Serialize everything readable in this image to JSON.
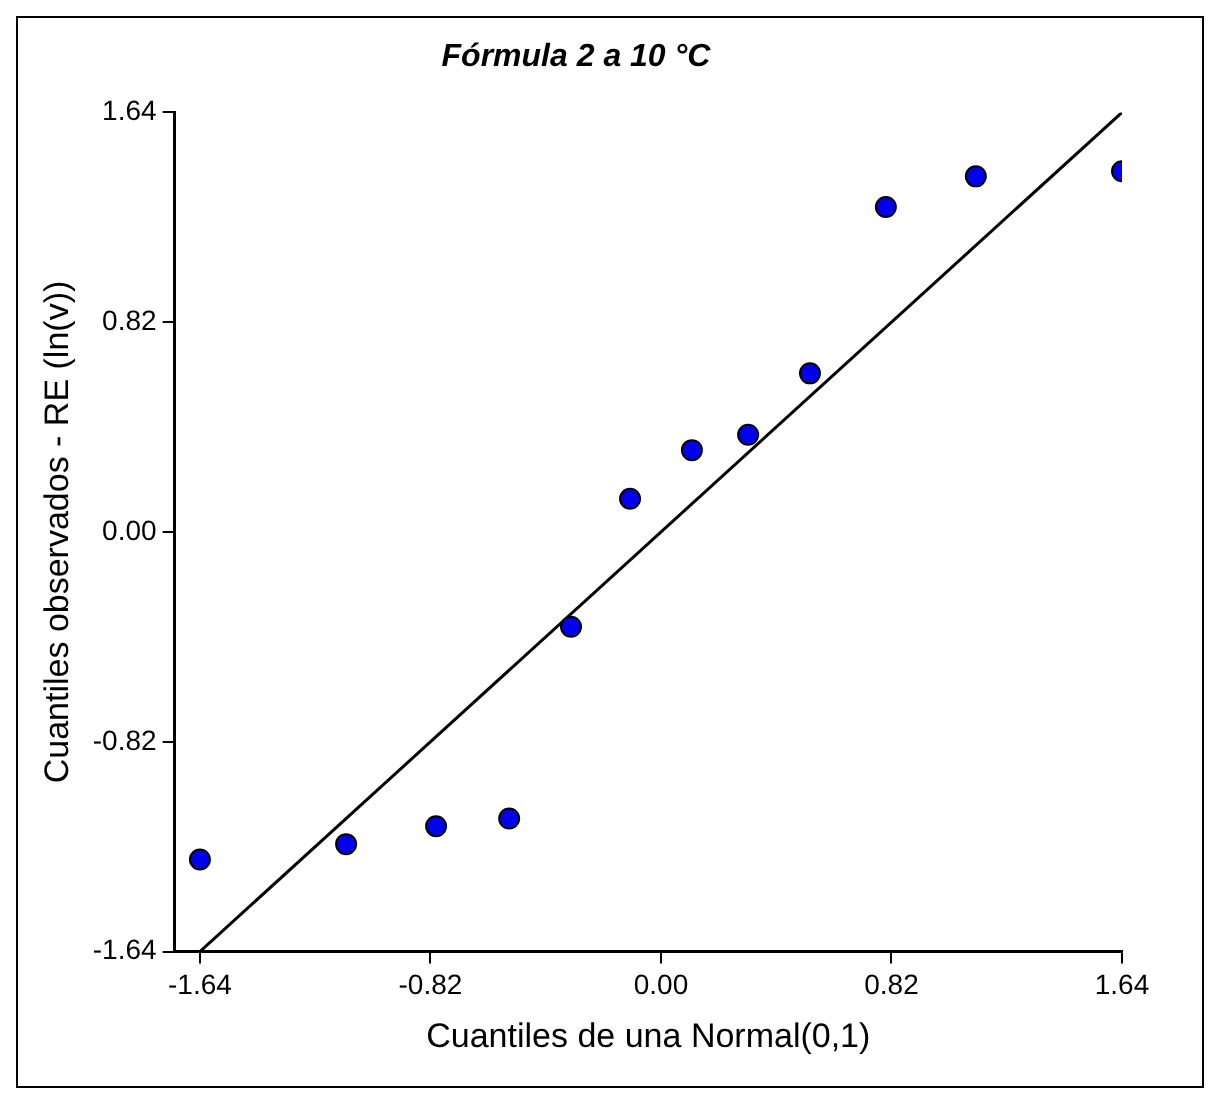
{
  "chart_data": {
    "type": "scatter",
    "title": "Fórmula 2 a 10 °C",
    "xlabel": "Cuantiles de una Normal(0,1)",
    "ylabel": "Cuantiles observados - RE (ln(v))",
    "series": [
      {
        "type": "scatter",
        "color": "#0000ee",
        "x": [
          -1.64,
          -1.12,
          -0.8,
          -0.54,
          -0.32,
          -0.11,
          0.11,
          0.31,
          0.53,
          0.8,
          1.12,
          1.64
        ],
        "values": [
          -1.28,
          -1.22,
          -1.15,
          -1.12,
          -0.37,
          0.13,
          0.32,
          0.38,
          0.62,
          1.27,
          1.39,
          1.41
        ]
      },
      {
        "type": "line",
        "color": "#000000",
        "marker": "none",
        "x": [
          -1.64,
          1.64
        ],
        "values": [
          -1.64,
          1.64
        ]
      }
    ],
    "xlim": [
      -1.73,
      1.64
    ],
    "ylim": [
      -1.64,
      1.64
    ],
    "xticks": [
      -1.64,
      -0.82,
      {
        "value": 0,
        "label": "0.00"
      },
      0.82,
      1.64
    ],
    "yticks": [
      -1.64,
      -0.82,
      {
        "value": 0,
        "label": "0.00"
      },
      0.82,
      1.64
    ],
    "grid": false,
    "legend": false,
    "marker": "circle",
    "line_style": "solid"
  }
}
